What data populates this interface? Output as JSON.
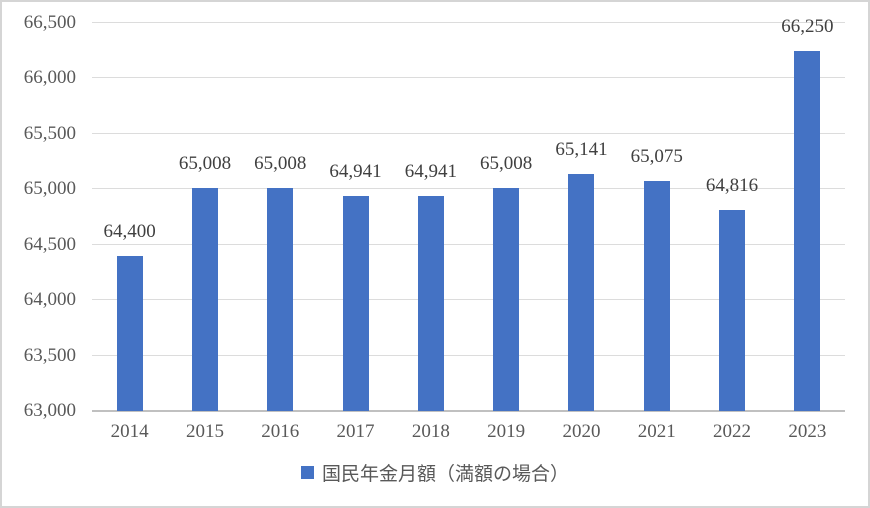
{
  "chart": {
    "colors": {
      "bar": "#4472C4",
      "gridline": "#DCDCDC",
      "axis_line": "#C0C0C0",
      "tick_label": "#595959",
      "data_label": "#404040",
      "frame_border": "#D5D5D5"
    },
    "legend": {
      "marker": "square-icon",
      "label": "国民年金月額（満額の場合）"
    }
  },
  "chart_data": {
    "type": "bar",
    "title": "",
    "xlabel": "",
    "ylabel": "",
    "categories": [
      "2014",
      "2015",
      "2016",
      "2017",
      "2018",
      "2019",
      "2020",
      "2021",
      "2022",
      "2023"
    ],
    "values": [
      64400,
      65008,
      65008,
      64941,
      64941,
      65008,
      65141,
      65075,
      64816,
      66250
    ],
    "data_labels": [
      "64,400",
      "65,008",
      "65,008",
      "64,941",
      "64,941",
      "65,008",
      "65,141",
      "65,075",
      "64,816",
      "66,250"
    ],
    "series_name": "国民年金月額（満額の場合）",
    "ylim": [
      63000,
      66500
    ],
    "ytick_step": 500,
    "ytick_labels": [
      "66,500",
      "66,000",
      "65,500",
      "65,000",
      "64,500",
      "64,000",
      "63,500",
      "63,000"
    ],
    "grid": true,
    "legend_position": "bottom"
  }
}
